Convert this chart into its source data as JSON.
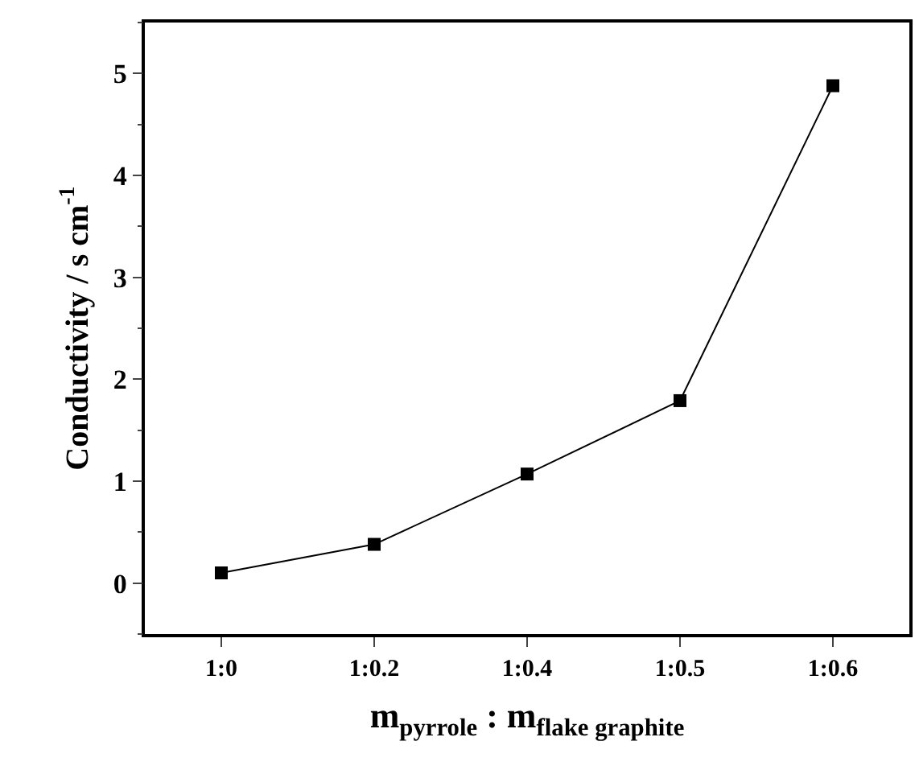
{
  "chart_data": {
    "type": "line",
    "xlabel": "m$_{pyrrole}$ : m$_{flake graphite}$",
    "ylabel": "Conductivity / s cm$^{-1}$",
    "categories": [
      "1:0",
      "1:0.2",
      "1:0.4",
      "1:0.5",
      "1:0.6"
    ],
    "series": [
      {
        "color": "#000000",
        "values": [
          0.1,
          0.38,
          1.07,
          1.79,
          4.88
        ]
      }
    ],
    "ylim": [
      -0.5,
      5.5
    ],
    "yticks": [
      0,
      1,
      2,
      3,
      4,
      5
    ],
    "marker": "square",
    "line_style": "solid"
  }
}
